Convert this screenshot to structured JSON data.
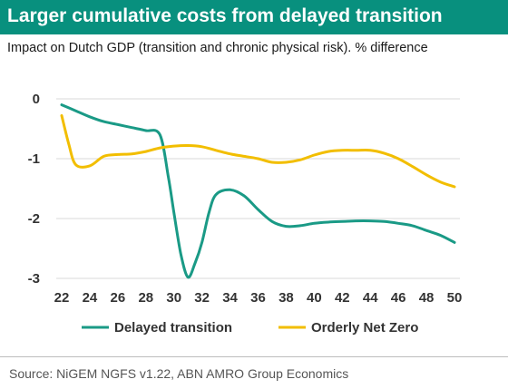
{
  "header": {
    "title": "Larger cumulative costs from delayed transition",
    "subtitle": "Impact on Dutch GDP (transition and chronic physical risk). % difference"
  },
  "footer": {
    "source": "Source: NiGEM NGFS v1.22, ABN AMRO Group Economics"
  },
  "colors": {
    "title_bar": "#08907e",
    "delayed": "#1a9a86",
    "orderly": "#f2be00",
    "grid": "#d9d9d9"
  },
  "chart_data": {
    "type": "line",
    "title": "",
    "xlabel": "",
    "ylabel": "",
    "xlim": [
      22,
      50
    ],
    "ylim": [
      -3,
      0
    ],
    "xticks": [
      22,
      24,
      26,
      28,
      30,
      32,
      34,
      36,
      38,
      40,
      42,
      44,
      46,
      48,
      50
    ],
    "yticks": [
      0,
      -1,
      -2,
      -3
    ],
    "grid": "horizontal",
    "legend": "bottom",
    "series": [
      {
        "name": "Delayed transition",
        "color": "#1a9a86",
        "points": [
          [
            22,
            -0.1
          ],
          [
            23,
            -0.2
          ],
          [
            24,
            -0.3
          ],
          [
            25,
            -0.38
          ],
          [
            26,
            -0.43
          ],
          [
            27,
            -0.48
          ],
          [
            28,
            -0.53
          ],
          [
            29,
            -0.6
          ],
          [
            29.6,
            -1.3
          ],
          [
            30,
            -1.9
          ],
          [
            30.5,
            -2.6
          ],
          [
            31,
            -2.98
          ],
          [
            31.5,
            -2.75
          ],
          [
            32,
            -2.4
          ],
          [
            32.5,
            -1.9
          ],
          [
            33,
            -1.6
          ],
          [
            34,
            -1.52
          ],
          [
            35,
            -1.62
          ],
          [
            36,
            -1.85
          ],
          [
            37,
            -2.05
          ],
          [
            38,
            -2.13
          ],
          [
            39,
            -2.12
          ],
          [
            40,
            -2.08
          ],
          [
            41,
            -2.06
          ],
          [
            42,
            -2.05
          ],
          [
            43,
            -2.04
          ],
          [
            44,
            -2.04
          ],
          [
            45,
            -2.05
          ],
          [
            46,
            -2.08
          ],
          [
            47,
            -2.12
          ],
          [
            48,
            -2.2
          ],
          [
            49,
            -2.28
          ],
          [
            50,
            -2.4
          ]
        ]
      },
      {
        "name": "Orderly Net Zero",
        "color": "#f2be00",
        "points": [
          [
            22,
            -0.28
          ],
          [
            22.5,
            -0.75
          ],
          [
            23,
            -1.1
          ],
          [
            24,
            -1.12
          ],
          [
            25,
            -0.96
          ],
          [
            26,
            -0.93
          ],
          [
            27,
            -0.92
          ],
          [
            28,
            -0.88
          ],
          [
            29,
            -0.82
          ],
          [
            30,
            -0.79
          ],
          [
            31,
            -0.78
          ],
          [
            32,
            -0.8
          ],
          [
            33,
            -0.86
          ],
          [
            34,
            -0.92
          ],
          [
            35,
            -0.96
          ],
          [
            36,
            -1.0
          ],
          [
            37,
            -1.06
          ],
          [
            38,
            -1.06
          ],
          [
            39,
            -1.02
          ],
          [
            40,
            -0.94
          ],
          [
            41,
            -0.88
          ],
          [
            42,
            -0.86
          ],
          [
            43,
            -0.86
          ],
          [
            44,
            -0.86
          ],
          [
            45,
            -0.91
          ],
          [
            46,
            -1.0
          ],
          [
            47,
            -1.13
          ],
          [
            48,
            -1.27
          ],
          [
            49,
            -1.39
          ],
          [
            50,
            -1.47
          ]
        ]
      }
    ]
  }
}
